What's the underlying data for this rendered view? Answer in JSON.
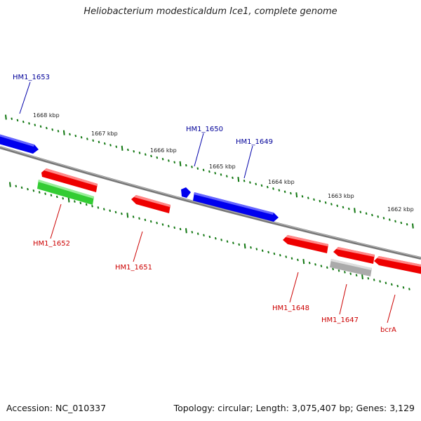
{
  "title": "Heliobacterium modesticaldum Ice1, complete genome",
  "footer": {
    "accession": "Accession: NC_010337",
    "summary": "Topology: circular; Length: 3,075,407 bp; Genes: 3,129"
  },
  "colors": {
    "forward_strand": "#0000ee",
    "reverse_strand": "#ee0000",
    "rna": "#33cc33",
    "pseudo": "#aaaaaa",
    "backbone": "#777777",
    "ticks": "#117711",
    "forward_label": "#000099",
    "reverse_label": "#cc0000"
  },
  "ruler": [
    {
      "label": "1668 kbp"
    },
    {
      "label": "1667 kbp"
    },
    {
      "label": "1666 kbp"
    },
    {
      "label": "1665 kbp"
    },
    {
      "label": "1664 kbp"
    },
    {
      "label": "1663 kbp"
    },
    {
      "label": "1662 kbp"
    }
  ],
  "genes": [
    {
      "label": "HM1_1653",
      "strand": "forward",
      "color": "#0000ee"
    },
    {
      "label": "HM1_1650",
      "strand": "forward",
      "color": "#0000ee"
    },
    {
      "label": "HM1_1649",
      "strand": "forward",
      "color": "#0000ee"
    },
    {
      "label": "HM1_1652",
      "strand": "reverse",
      "color": "#ee0000"
    },
    {
      "label": "",
      "strand": "reverse",
      "color": "#33cc33"
    },
    {
      "label": "HM1_1651",
      "strand": "reverse",
      "color": "#ee0000"
    },
    {
      "label": "HM1_1648",
      "strand": "reverse",
      "color": "#ee0000"
    },
    {
      "label": "HM1_1647",
      "strand": "reverse",
      "color": "#ee0000"
    },
    {
      "label": "",
      "strand": "reverse",
      "color": "#aaaaaa"
    },
    {
      "label": "bcrA",
      "strand": "reverse",
      "color": "#ee0000"
    }
  ]
}
